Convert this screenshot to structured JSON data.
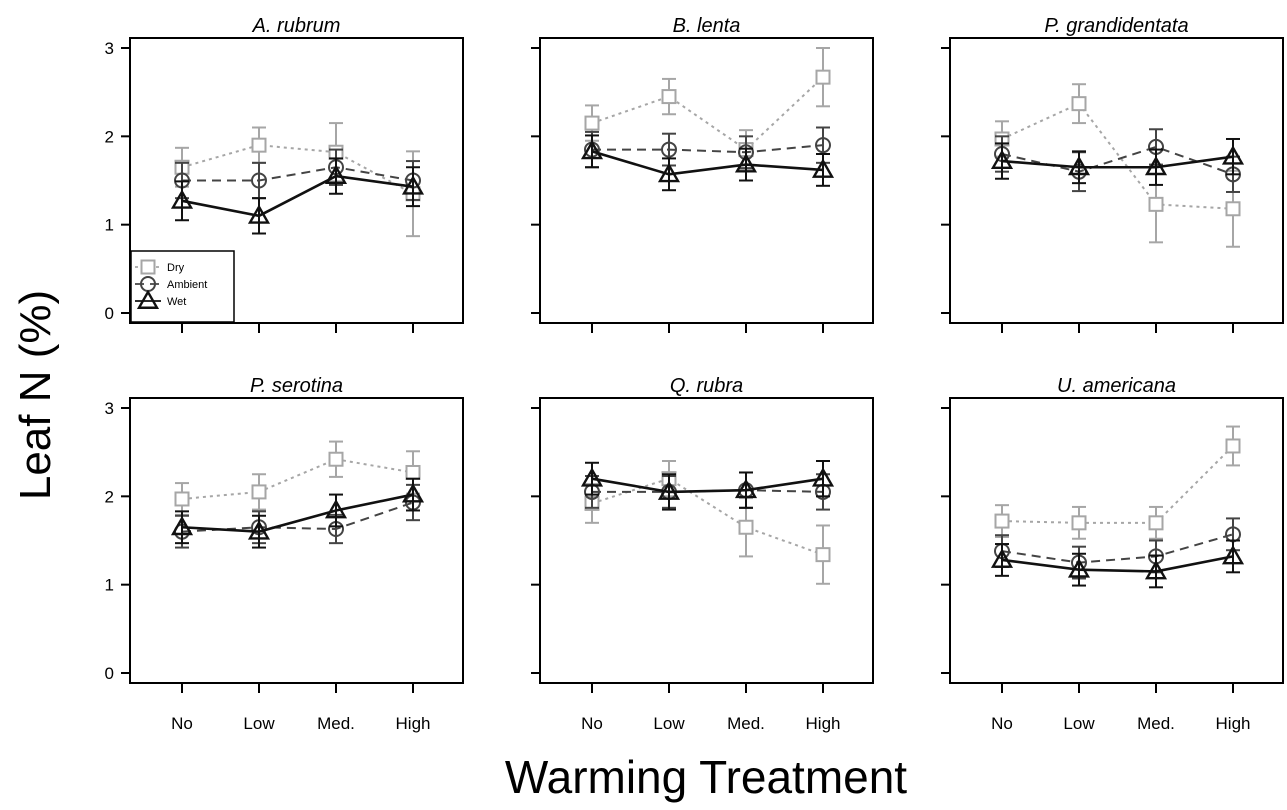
{
  "figure": {
    "ylabel": "Leaf N (%)",
    "xlabel": "Warming Treatment"
  },
  "legend": {
    "placement": "bottom-left of first panel",
    "entries": [
      {
        "label": "Dry",
        "series": "Dry"
      },
      {
        "label": "Ambient",
        "series": "Ambient"
      },
      {
        "label": "Wet",
        "series": "Wet"
      }
    ]
  },
  "styles": {
    "Dry": {
      "color": "#a6a6a6",
      "marker": "square",
      "dash": "3,4",
      "width": 2
    },
    "Ambient": {
      "color": "#444444",
      "marker": "circle",
      "dash": "9,6",
      "width": 2
    },
    "Wet": {
      "color": "#111111",
      "marker": "triangle",
      "dash": "",
      "width": 2.6
    }
  },
  "chart_data": [
    {
      "type": "line",
      "title": "A. rubrum",
      "categories": [
        "No",
        "Low",
        "Med.",
        "High"
      ],
      "ylim": [
        0,
        3
      ],
      "yticks": [
        0,
        1,
        2,
        3
      ],
      "show_legend": true,
      "series": [
        {
          "name": "Dry",
          "values": [
            1.65,
            1.9,
            1.82,
            1.35
          ],
          "err": [
            0.22,
            0.2,
            0.33,
            0.48
          ]
        },
        {
          "name": "Ambient",
          "values": [
            1.5,
            1.5,
            1.65,
            1.5
          ],
          "err": [
            0.2,
            0.2,
            0.2,
            0.22
          ]
        },
        {
          "name": "Wet",
          "values": [
            1.27,
            1.1,
            1.55,
            1.43
          ],
          "err": [
            0.22,
            0.2,
            0.2,
            0.22
          ]
        }
      ]
    },
    {
      "type": "line",
      "title": "B. lenta",
      "categories": [
        "No",
        "Low",
        "Med.",
        "High"
      ],
      "ylim": [
        0,
        3
      ],
      "yticks": [
        0,
        1,
        2,
        3
      ],
      "show_legend": false,
      "series": [
        {
          "name": "Dry",
          "values": [
            2.15,
            2.45,
            1.85,
            2.67
          ],
          "err": [
            0.2,
            0.2,
            0.22,
            0.33
          ]
        },
        {
          "name": "Ambient",
          "values": [
            1.85,
            1.85,
            1.82,
            1.9
          ],
          "err": [
            0.2,
            0.18,
            0.18,
            0.2
          ]
        },
        {
          "name": "Wet",
          "values": [
            1.83,
            1.57,
            1.68,
            1.62
          ],
          "err": [
            0.18,
            0.18,
            0.18,
            0.18
          ]
        }
      ]
    },
    {
      "type": "line",
      "title": "P. grandidentata",
      "categories": [
        "No",
        "Low",
        "Med.",
        "High"
      ],
      "ylim": [
        0,
        3
      ],
      "yticks": [
        0,
        1,
        2,
        3
      ],
      "show_legend": false,
      "series": [
        {
          "name": "Dry",
          "values": [
            1.97,
            2.37,
            1.23,
            1.18
          ],
          "err": [
            0.2,
            0.22,
            0.43,
            0.43
          ]
        },
        {
          "name": "Ambient",
          "values": [
            1.8,
            1.6,
            1.88,
            1.57
          ],
          "err": [
            0.2,
            0.22,
            0.2,
            0.2
          ]
        },
        {
          "name": "Wet",
          "values": [
            1.72,
            1.65,
            1.65,
            1.77
          ],
          "err": [
            0.2,
            0.18,
            0.2,
            0.2
          ]
        }
      ]
    },
    {
      "type": "line",
      "title": "P. serotina",
      "categories": [
        "No",
        "Low",
        "Med.",
        "High"
      ],
      "ylim": [
        0,
        3
      ],
      "yticks": [
        0,
        1,
        2,
        3
      ],
      "show_legend": false,
      "series": [
        {
          "name": "Dry",
          "values": [
            1.97,
            2.05,
            2.42,
            2.27
          ],
          "err": [
            0.18,
            0.2,
            0.2,
            0.24
          ]
        },
        {
          "name": "Ambient",
          "values": [
            1.6,
            1.65,
            1.63,
            1.93
          ],
          "err": [
            0.18,
            0.18,
            0.16,
            0.2
          ]
        },
        {
          "name": "Wet",
          "values": [
            1.65,
            1.6,
            1.84,
            2.02
          ],
          "err": [
            0.18,
            0.18,
            0.18,
            0.18
          ]
        }
      ]
    },
    {
      "type": "line",
      "title": "Q. rubra",
      "categories": [
        "No",
        "Low",
        "Med.",
        "High"
      ],
      "ylim": [
        0,
        3
      ],
      "yticks": [
        0,
        1,
        2,
        3
      ],
      "show_legend": false,
      "series": [
        {
          "name": "Dry",
          "values": [
            1.92,
            2.2,
            1.65,
            1.34
          ],
          "err": [
            0.22,
            0.2,
            0.33,
            0.33
          ]
        },
        {
          "name": "Ambient",
          "values": [
            2.05,
            2.05,
            2.07,
            2.05
          ],
          "err": [
            0.18,
            0.18,
            0.2,
            0.2
          ]
        },
        {
          "name": "Wet",
          "values": [
            2.2,
            2.05,
            2.07,
            2.2
          ],
          "err": [
            0.18,
            0.2,
            0.2,
            0.2
          ]
        }
      ]
    },
    {
      "type": "line",
      "title": "U. americana",
      "categories": [
        "No",
        "Low",
        "Med.",
        "High"
      ],
      "ylim": [
        0,
        3
      ],
      "yticks": [
        0,
        1,
        2,
        3
      ],
      "show_legend": false,
      "series": [
        {
          "name": "Dry",
          "values": [
            1.72,
            1.7,
            1.7,
            2.57
          ],
          "err": [
            0.18,
            0.18,
            0.18,
            0.22
          ]
        },
        {
          "name": "Ambient",
          "values": [
            1.38,
            1.25,
            1.32,
            1.57
          ],
          "err": [
            0.18,
            0.18,
            0.18,
            0.18
          ]
        },
        {
          "name": "Wet",
          "values": [
            1.28,
            1.17,
            1.15,
            1.32
          ],
          "err": [
            0.18,
            0.18,
            0.18,
            0.18
          ]
        }
      ]
    }
  ]
}
